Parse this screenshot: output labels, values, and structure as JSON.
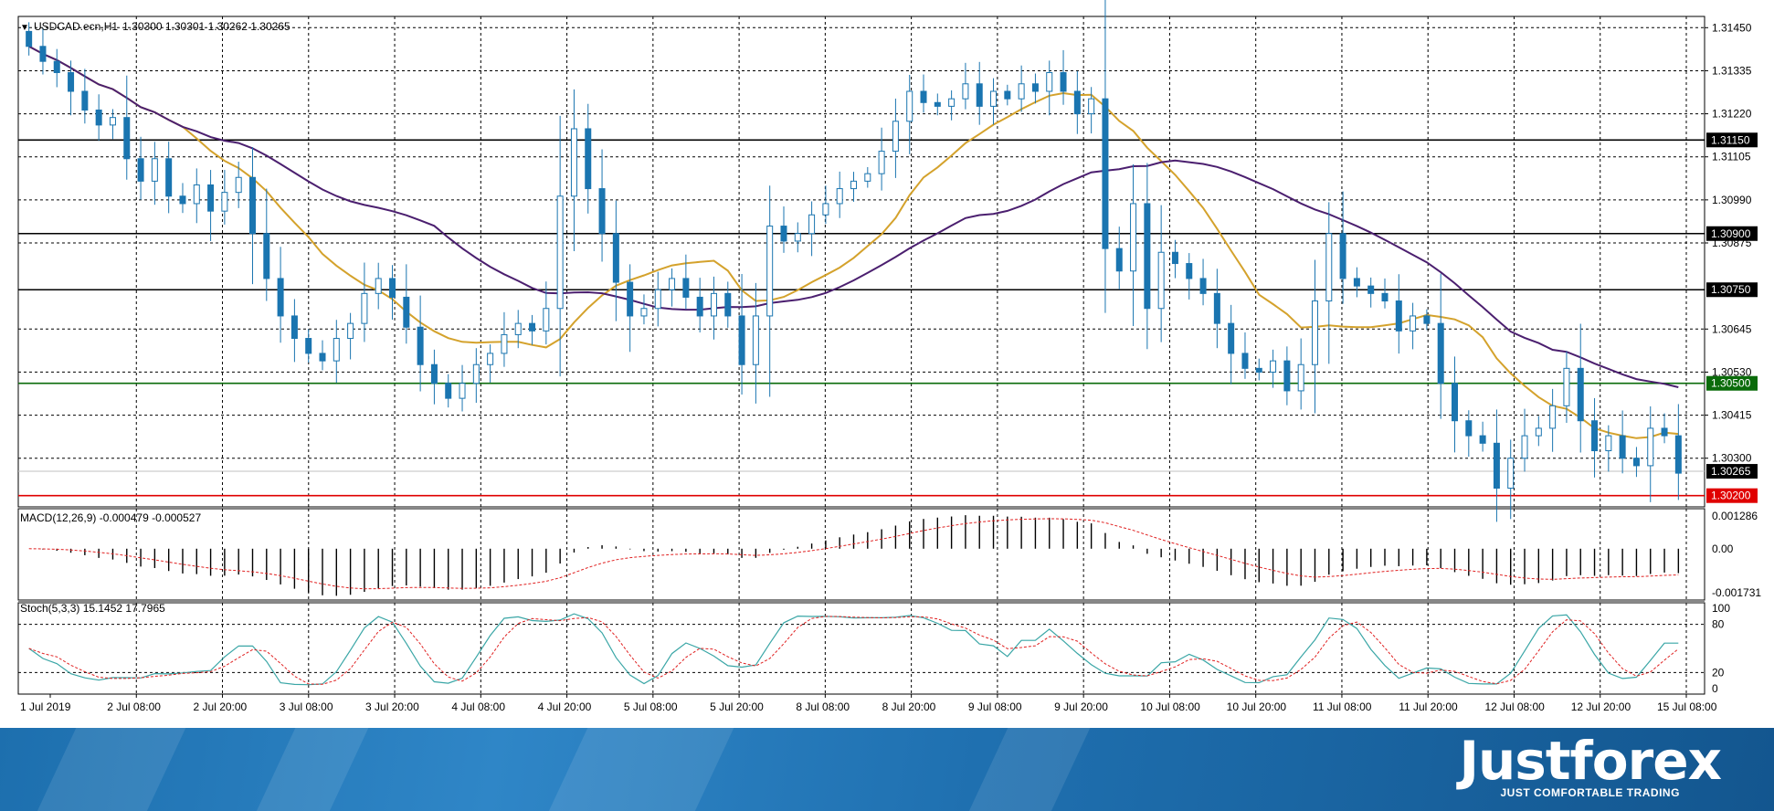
{
  "main_header": {
    "menu_icon": "triangle-down-icon",
    "symbol": "USDCAD.ecn,H1",
    "ohlc": "1.30300 1.30301 1.30262 1.30265"
  },
  "macd_header": "MACD(12,26,9) -0.000479 -0.000527",
  "stoch_header": "Stoch(5,3,3) 15.1452 17.7965",
  "brand": {
    "name": "Justforex",
    "tagline": "JUST COMFORTABLE TRADING"
  },
  "chart_data": [
    {
      "type": "candlestick",
      "title": "USDCAD.ecn,H1",
      "x_ticks": [
        "1 Jul 2019",
        "2 Jul 08:00",
        "2 Jul 20:00",
        "3 Jul 08:00",
        "3 Jul 20:00",
        "4 Jul 08:00",
        "4 Jul 20:00",
        "5 Jul 08:00",
        "5 Jul 20:00",
        "8 Jul 08:00",
        "8 Jul 20:00",
        "9 Jul 08:00",
        "9 Jul 20:00",
        "10 Jul 08:00",
        "10 Jul 20:00",
        "11 Jul 08:00",
        "11 Jul 20:00",
        "12 Jul 08:00",
        "12 Jul 20:00",
        "15 Jul 08:00"
      ],
      "y_ticks": [
        "1.31450",
        "1.31335",
        "1.31220",
        "1.31105",
        "1.30990",
        "1.30875",
        "1.30645",
        "1.30530",
        "1.30415",
        "1.30300"
      ],
      "ylim": [
        1.3017,
        1.3148
      ],
      "grid": true,
      "close": [
        1.314,
        1.3136,
        1.3133,
        1.3128,
        1.3123,
        1.3119,
        1.3121,
        1.311,
        1.3104,
        1.311,
        1.31,
        1.3098,
        1.3103,
        1.3096,
        1.3101,
        1.3105,
        1.309,
        1.3078,
        1.3068,
        1.3062,
        1.3058,
        1.3056,
        1.3062,
        1.3066,
        1.3074,
        1.3078,
        1.3073,
        1.3065,
        1.3055,
        1.305,
        1.3046,
        1.305,
        1.3055,
        1.3058,
        1.3063,
        1.3066,
        1.3064,
        1.307,
        1.31,
        1.3118,
        1.3102,
        1.309,
        1.3077,
        1.3068,
        1.307,
        1.3075,
        1.3078,
        1.3073,
        1.3068,
        1.3074,
        1.3068,
        1.3055,
        1.3068,
        1.3092,
        1.3088,
        1.309,
        1.3095,
        1.3098,
        1.3102,
        1.3104,
        1.3106,
        1.3112,
        1.312,
        1.3128,
        1.3125,
        1.3124,
        1.3126,
        1.313,
        1.3124,
        1.3128,
        1.3126,
        1.313,
        1.3128,
        1.3133,
        1.3128,
        1.3122,
        1.3126,
        1.3086,
        1.308,
        1.3098,
        1.307,
        1.3085,
        1.3082,
        1.3078,
        1.3074,
        1.3066,
        1.3058,
        1.3054,
        1.3053,
        1.3056,
        1.3048,
        1.3055,
        1.3072,
        1.309,
        1.3078,
        1.3076,
        1.3074,
        1.3072,
        1.3064,
        1.3068,
        1.3066,
        1.305,
        1.304,
        1.3036,
        1.3034,
        1.3022,
        1.303,
        1.3036,
        1.3038,
        1.3044,
        1.3054,
        1.304,
        1.3032,
        1.3036,
        1.303,
        1.3028,
        1.3038,
        1.3036,
        1.3026
      ],
      "indicators": [
        {
          "name": "MA fast",
          "color": "#d4a22c"
        },
        {
          "name": "MA slow",
          "color": "#4b1f6f"
        }
      ],
      "horizontal_levels": [
        {
          "label": "1.31150",
          "value": 1.3115,
          "color": "#000000",
          "tag_color": "#000000"
        },
        {
          "label": "1.30900",
          "value": 1.309,
          "color": "#000000",
          "tag_color": "#000000"
        },
        {
          "label": "1.30750",
          "value": 1.3075,
          "color": "#000000",
          "tag_color": "#000000"
        },
        {
          "label": "1.30500",
          "value": 1.305,
          "color": "#0a6b0a",
          "tag_color": "#0a6b0a"
        },
        {
          "label": "1.30265",
          "value": 1.30265,
          "color": "#c0c0c0",
          "tag_color": "#000000"
        },
        {
          "label": "1.30200",
          "value": 1.302,
          "color": "#e00000",
          "tag_color": "#e00000"
        }
      ],
      "candle_color": "#1a75b0"
    },
    {
      "type": "histogram",
      "title": "MACD(12,26,9) -0.000479 -0.000527",
      "y_ticks": [
        "0.001286",
        "0.00",
        "-0.001731"
      ],
      "ylim": [
        -0.001731,
        0.001286
      ],
      "histogram_color": "#000000",
      "signal_color": "#e02020"
    },
    {
      "type": "line",
      "title": "Stoch(5,3,3) 15.1452 17.7965",
      "y_ticks": [
        "100",
        "80",
        "20",
        "0"
      ],
      "ylim": [
        0,
        100
      ],
      "levels": [
        80,
        20
      ],
      "main_color": "#3aa6a6",
      "signal_color": "#e02020"
    }
  ],
  "colors": {
    "background": "#ffffff",
    "grid": "#000000",
    "candle": "#1a75b0",
    "ma_fast": "#d4a22c",
    "ma_slow": "#4b1f6f",
    "banner": "#1f70b0"
  }
}
